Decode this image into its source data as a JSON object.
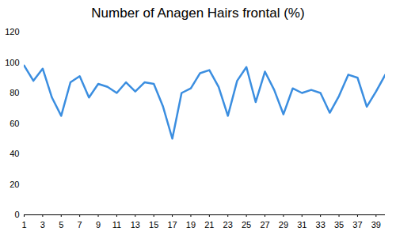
{
  "chart_data": {
    "type": "line",
    "title": "Number of Anagen Hairs frontal (%)",
    "x": [
      1,
      2,
      3,
      4,
      5,
      6,
      7,
      8,
      9,
      10,
      11,
      12,
      13,
      14,
      15,
      16,
      17,
      18,
      19,
      20,
      21,
      22,
      23,
      24,
      25,
      26,
      27,
      28,
      29,
      30,
      31,
      32,
      33,
      34,
      35,
      36,
      37,
      38,
      39,
      40
    ],
    "values": [
      98,
      88,
      96,
      77,
      65,
      87,
      91,
      77,
      86,
      84,
      80,
      87,
      81,
      87,
      86,
      71,
      50,
      80,
      83,
      93,
      95,
      84,
      65,
      88,
      97,
      74,
      94,
      82,
      66,
      83,
      80,
      82,
      80,
      67,
      78,
      92,
      90,
      71,
      81,
      92
    ],
    "color": "#3b8ee0",
    "xlim": [
      1,
      40
    ],
    "xticks": [
      1,
      3,
      5,
      7,
      9,
      11,
      13,
      15,
      17,
      19,
      21,
      23,
      25,
      27,
      29,
      31,
      33,
      35,
      37,
      39
    ],
    "ylim": [
      0,
      120
    ],
    "yticks": [
      0,
      20,
      40,
      60,
      80,
      100,
      120
    ],
    "grid": false
  }
}
